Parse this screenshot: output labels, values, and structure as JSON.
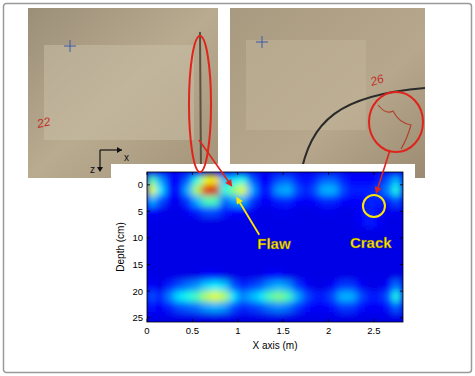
{
  "chart_data": {
    "type": "heatmap",
    "xlabel": "X axis (m)",
    "ylabel": "Depth (cm)",
    "x": [
      0.05,
      0.15,
      0.25,
      0.35,
      0.45,
      0.55,
      0.65,
      0.75,
      0.85,
      0.95,
      1.05,
      1.15,
      1.25,
      1.35,
      1.45,
      1.55,
      1.65,
      1.75,
      1.85,
      1.95,
      2.05,
      2.15,
      2.25,
      2.35,
      2.45,
      2.55,
      2.65,
      2.75
    ],
    "y": [
      -1,
      1,
      3,
      5,
      7,
      9,
      11,
      13,
      15,
      17,
      19,
      21,
      23,
      25
    ],
    "values": [
      [
        0.45,
        0.28,
        0.14,
        0.12,
        0.22,
        0.4,
        0.6,
        0.65,
        0.3,
        0.35,
        0.4,
        0.22,
        0.13,
        0.12,
        0.2,
        0.22,
        0.16,
        0.13,
        0.16,
        0.22,
        0.22,
        0.16,
        0.13,
        0.13,
        0.13,
        0.14,
        0.2,
        0.3
      ],
      [
        0.6,
        0.35,
        0.15,
        0.12,
        0.3,
        0.55,
        0.9,
        0.92,
        0.4,
        0.5,
        0.6,
        0.3,
        0.15,
        0.15,
        0.28,
        0.3,
        0.2,
        0.15,
        0.2,
        0.3,
        0.3,
        0.2,
        0.15,
        0.15,
        0.15,
        0.18,
        0.25,
        0.4
      ],
      [
        0.3,
        0.2,
        0.12,
        0.11,
        0.18,
        0.3,
        0.45,
        0.45,
        0.22,
        0.28,
        0.3,
        0.18,
        0.12,
        0.12,
        0.15,
        0.16,
        0.13,
        0.12,
        0.13,
        0.16,
        0.16,
        0.13,
        0.12,
        0.13,
        0.16,
        0.15,
        0.14,
        0.2
      ],
      [
        0.12,
        0.11,
        0.1,
        0.1,
        0.12,
        0.15,
        0.2,
        0.2,
        0.15,
        0.13,
        0.13,
        0.11,
        0.1,
        0.1,
        0.11,
        0.11,
        0.1,
        0.1,
        0.1,
        0.11,
        0.11,
        0.1,
        0.1,
        0.12,
        0.16,
        0.14,
        0.11,
        0.11
      ],
      [
        0.1,
        0.1,
        0.1,
        0.1,
        0.1,
        0.1,
        0.1,
        0.1,
        0.1,
        0.1,
        0.1,
        0.1,
        0.1,
        0.1,
        0.1,
        0.1,
        0.1,
        0.1,
        0.1,
        0.1,
        0.1,
        0.1,
        0.1,
        0.12,
        0.15,
        0.13,
        0.1,
        0.1
      ],
      [
        0.1,
        0.1,
        0.1,
        0.1,
        0.1,
        0.1,
        0.1,
        0.1,
        0.1,
        0.1,
        0.1,
        0.1,
        0.1,
        0.1,
        0.1,
        0.1,
        0.1,
        0.1,
        0.1,
        0.1,
        0.1,
        0.1,
        0.1,
        0.1,
        0.1,
        0.1,
        0.1,
        0.1
      ],
      [
        0.1,
        0.1,
        0.1,
        0.1,
        0.1,
        0.1,
        0.1,
        0.1,
        0.1,
        0.1,
        0.1,
        0.1,
        0.1,
        0.1,
        0.1,
        0.1,
        0.1,
        0.1,
        0.1,
        0.1,
        0.1,
        0.1,
        0.1,
        0.1,
        0.1,
        0.1,
        0.1,
        0.1
      ],
      [
        0.1,
        0.1,
        0.1,
        0.1,
        0.1,
        0.1,
        0.1,
        0.1,
        0.1,
        0.1,
        0.1,
        0.1,
        0.1,
        0.1,
        0.1,
        0.1,
        0.1,
        0.1,
        0.1,
        0.1,
        0.1,
        0.1,
        0.1,
        0.1,
        0.1,
        0.1,
        0.1,
        0.1
      ],
      [
        0.1,
        0.1,
        0.1,
        0.1,
        0.1,
        0.1,
        0.1,
        0.1,
        0.1,
        0.1,
        0.1,
        0.1,
        0.1,
        0.1,
        0.1,
        0.1,
        0.1,
        0.1,
        0.1,
        0.1,
        0.1,
        0.1,
        0.1,
        0.1,
        0.1,
        0.1,
        0.1,
        0.1
      ],
      [
        0.1,
        0.1,
        0.1,
        0.1,
        0.1,
        0.1,
        0.12,
        0.12,
        0.1,
        0.1,
        0.1,
        0.1,
        0.1,
        0.12,
        0.12,
        0.1,
        0.1,
        0.1,
        0.1,
        0.1,
        0.1,
        0.1,
        0.1,
        0.1,
        0.1,
        0.1,
        0.1,
        0.1
      ],
      [
        0.12,
        0.1,
        0.15,
        0.2,
        0.24,
        0.27,
        0.33,
        0.36,
        0.33,
        0.21,
        0.15,
        0.18,
        0.21,
        0.27,
        0.3,
        0.27,
        0.18,
        0.12,
        0.1,
        0.1,
        0.12,
        0.18,
        0.18,
        0.12,
        0.1,
        0.1,
        0.12,
        0.24
      ],
      [
        0.2,
        0.15,
        0.25,
        0.35,
        0.4,
        0.45,
        0.55,
        0.6,
        0.55,
        0.35,
        0.25,
        0.3,
        0.35,
        0.45,
        0.5,
        0.45,
        0.3,
        0.2,
        0.15,
        0.15,
        0.2,
        0.3,
        0.3,
        0.2,
        0.15,
        0.15,
        0.2,
        0.4
      ],
      [
        0.14,
        0.12,
        0.15,
        0.2,
        0.22,
        0.24,
        0.28,
        0.3,
        0.28,
        0.2,
        0.16,
        0.18,
        0.2,
        0.24,
        0.26,
        0.24,
        0.18,
        0.14,
        0.12,
        0.12,
        0.14,
        0.18,
        0.18,
        0.14,
        0.12,
        0.12,
        0.14,
        0.22
      ],
      [
        0.1,
        0.1,
        0.1,
        0.1,
        0.1,
        0.1,
        0.1,
        0.1,
        0.1,
        0.1,
        0.1,
        0.1,
        0.1,
        0.1,
        0.1,
        0.1,
        0.1,
        0.1,
        0.1,
        0.1,
        0.1,
        0.1,
        0.1,
        0.1,
        0.1,
        0.1,
        0.1,
        0.1
      ]
    ],
    "zlim": [
      0,
      1
    ],
    "xlim": [
      0,
      2.82
    ],
    "ylim": [
      -2.4,
      25.8
    ],
    "xticks": [
      0,
      0.5,
      1,
      1.5,
      2,
      2.5
    ],
    "yticks": [
      0,
      5,
      10,
      15,
      20,
      25
    ],
    "annotations": [
      {
        "text": "Flaw",
        "x": 0.95,
        "y": 1.5
      },
      {
        "text": "Crack",
        "x": 2.5,
        "y": 4
      }
    ]
  },
  "photos": [
    {
      "label": "22",
      "axes": [
        "x",
        "z"
      ]
    },
    {
      "label": "26"
    }
  ]
}
